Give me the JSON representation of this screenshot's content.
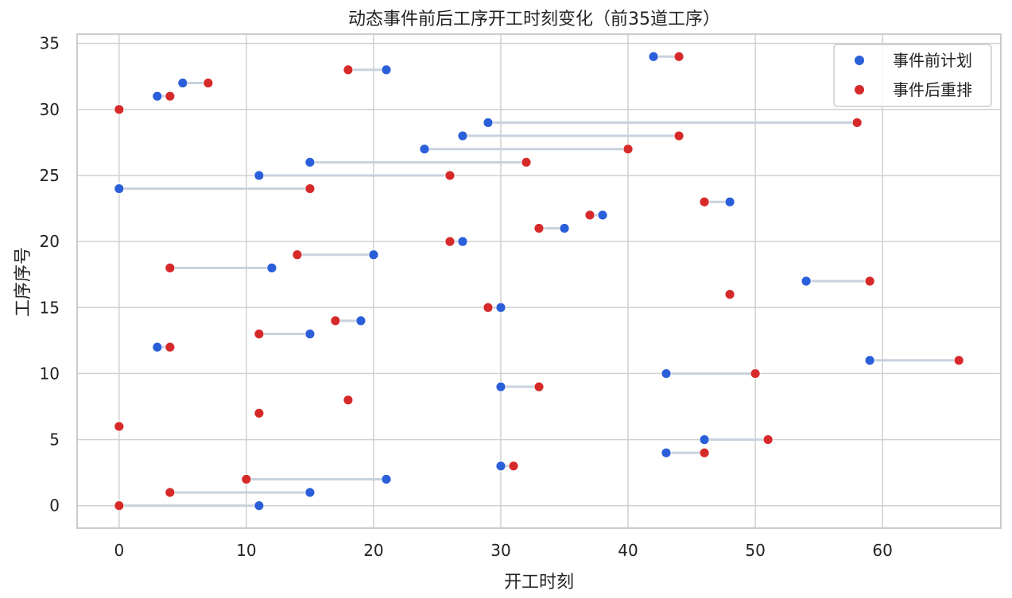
{
  "chart_data": {
    "type": "scatter",
    "title": "动态事件前后工序开工时刻变化（前35道工序）",
    "xlabel": "开工时刻",
    "ylabel": "工序序号",
    "xlim": [
      -3.3,
      69.3
    ],
    "ylim": [
      -1.7,
      35.7
    ],
    "xticks": [
      0,
      10,
      20,
      30,
      40,
      50,
      60
    ],
    "yticks": [
      0,
      5,
      10,
      15,
      20,
      25,
      30,
      35
    ],
    "grid": true,
    "legend_position": "top-right",
    "series": [
      {
        "name": "事件前计划",
        "color": "#2b5fd9"
      },
      {
        "name": "事件后重排",
        "color": "#d62a2a"
      }
    ],
    "connector_color": "#c8d2de",
    "points": [
      {
        "op": 0,
        "before": 11,
        "after": 0
      },
      {
        "op": 1,
        "before": 15,
        "after": 4
      },
      {
        "op": 2,
        "before": 21,
        "after": 10
      },
      {
        "op": 3,
        "before": 30,
        "after": 31
      },
      {
        "op": 4,
        "before": 43,
        "after": 46
      },
      {
        "op": 5,
        "before": 46,
        "after": 51
      },
      {
        "op": 6,
        "before": 0,
        "after": 0
      },
      {
        "op": 7,
        "before": 11,
        "after": 11
      },
      {
        "op": 8,
        "before": 18,
        "after": 18
      },
      {
        "op": 9,
        "before": 30,
        "after": 33
      },
      {
        "op": 10,
        "before": 43,
        "after": 50
      },
      {
        "op": 11,
        "before": 59,
        "after": 66
      },
      {
        "op": 12,
        "before": 3,
        "after": 4
      },
      {
        "op": 13,
        "before": 15,
        "after": 11
      },
      {
        "op": 14,
        "before": 19,
        "after": 17
      },
      {
        "op": 15,
        "before": 30,
        "after": 29
      },
      {
        "op": 16,
        "before": 48,
        "after": 48
      },
      {
        "op": 17,
        "before": 54,
        "after": 59
      },
      {
        "op": 18,
        "before": 12,
        "after": 4
      },
      {
        "op": 19,
        "before": 20,
        "after": 14
      },
      {
        "op": 20,
        "before": 27,
        "after": 26
      },
      {
        "op": 21,
        "before": 35,
        "after": 33
      },
      {
        "op": 22,
        "before": 38,
        "after": 37
      },
      {
        "op": 23,
        "before": 48,
        "after": 46
      },
      {
        "op": 24,
        "before": 0,
        "after": 15
      },
      {
        "op": 25,
        "before": 11,
        "after": 26
      },
      {
        "op": 26,
        "before": 15,
        "after": 32
      },
      {
        "op": 27,
        "before": 24,
        "after": 40
      },
      {
        "op": 28,
        "before": 27,
        "after": 44
      },
      {
        "op": 29,
        "before": 29,
        "after": 58
      },
      {
        "op": 30,
        "before": 0,
        "after": 0
      },
      {
        "op": 31,
        "before": 3,
        "after": 4
      },
      {
        "op": 32,
        "before": 5,
        "after": 7
      },
      {
        "op": 33,
        "before": 21,
        "after": 18
      },
      {
        "op": 34,
        "before": 42,
        "after": 44
      }
    ]
  }
}
